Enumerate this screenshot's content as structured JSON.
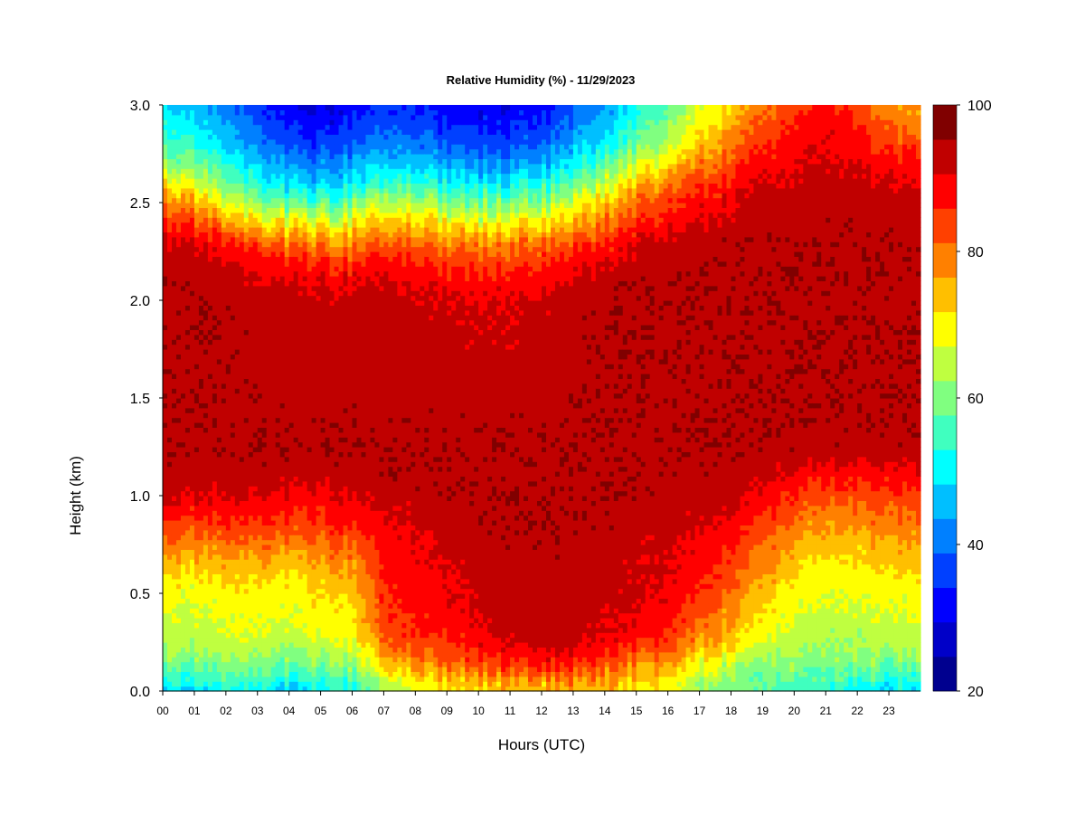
{
  "chart_data": {
    "type": "heatmap",
    "title": "Relative Humidity (%) - 11/29/2023",
    "xlabel": "Hours (UTC)",
    "ylabel": "Height (km)",
    "x_ticks": [
      "00",
      "01",
      "02",
      "03",
      "04",
      "05",
      "06",
      "07",
      "08",
      "09",
      "10",
      "11",
      "12",
      "13",
      "14",
      "15",
      "16",
      "17",
      "18",
      "19",
      "20",
      "21",
      "22",
      "23"
    ],
    "y_ticks": [
      "0.0",
      "0.5",
      "1.0",
      "1.5",
      "2.0",
      "2.5",
      "3.0"
    ],
    "xlim": [
      0,
      24
    ],
    "ylim": [
      0,
      3.0
    ],
    "colorbar": {
      "min": 20,
      "max": 100,
      "step": 5,
      "tick_labels": [
        "20",
        "40",
        "60",
        "80",
        "100"
      ],
      "tick_values": [
        20,
        40,
        60,
        80,
        100
      ],
      "colors": [
        "#00008f",
        "#0000c8",
        "#0000ff",
        "#0040ff",
        "#0080ff",
        "#00bfff",
        "#00ffff",
        "#40ffbf",
        "#80ff80",
        "#bfff40",
        "#ffff00",
        "#ffbf00",
        "#ff8000",
        "#ff4000",
        "#ff0000",
        "#c00000",
        "#800000"
      ]
    },
    "hours": [
      0,
      1,
      2,
      3,
      4,
      5,
      6,
      7,
      8,
      9,
      10,
      11,
      12,
      13,
      14,
      15,
      16,
      17,
      18,
      19,
      20,
      21,
      22,
      23,
      24
    ],
    "heights_km": [
      0.0,
      0.05,
      0.1,
      0.15,
      0.2,
      0.25,
      0.3,
      0.4,
      0.5,
      0.6,
      0.7,
      0.8,
      0.9,
      1.0,
      1.1,
      1.2,
      1.3,
      2.0,
      2.1,
      2.2,
      2.3,
      2.4,
      2.5,
      2.6,
      2.7,
      2.8,
      2.9,
      3.0
    ],
    "rh_percent": [
      [
        50,
        48,
        52,
        50,
        48,
        52,
        52,
        65,
        70,
        72,
        74,
        75,
        76,
        77,
        76,
        74,
        72,
        65,
        62,
        60,
        58,
        55,
        52,
        50,
        50
      ],
      [
        55,
        54,
        57,
        56,
        54,
        57,
        57,
        70,
        74,
        76,
        79,
        80,
        82,
        82,
        80,
        78,
        74,
        67,
        62,
        60,
        60,
        58,
        56,
        55,
        55
      ],
      [
        58,
        57,
        60,
        59,
        57,
        60,
        60,
        74,
        78,
        80,
        84,
        86,
        88,
        88,
        84,
        80,
        76,
        70,
        65,
        62,
        62,
        60,
        60,
        58,
        58
      ],
      [
        62,
        61,
        63,
        62,
        61,
        64,
        64,
        78,
        82,
        84,
        88,
        90,
        92,
        92,
        88,
        84,
        80,
        74,
        68,
        65,
        64,
        62,
        62,
        62,
        62
      ],
      [
        65,
        64,
        66,
        65,
        64,
        67,
        67,
        82,
        86,
        87,
        91,
        93,
        95,
        95,
        91,
        88,
        84,
        78,
        72,
        68,
        66,
        64,
        65,
        65,
        65
      ],
      [
        67,
        66,
        68,
        68,
        66,
        69,
        70,
        85,
        88,
        89,
        93,
        95,
        97,
        97,
        94,
        91,
        87,
        81,
        75,
        70,
        67,
        65,
        66,
        67,
        67
      ],
      [
        68,
        68,
        70,
        70,
        68,
        71,
        72,
        87,
        90,
        91,
        94,
        96,
        97,
        97,
        95,
        93,
        90,
        84,
        78,
        72,
        68,
        66,
        67,
        68,
        68
      ],
      [
        70,
        69,
        71,
        71,
        70,
        73,
        74,
        89,
        91,
        93,
        95,
        97,
        98,
        97,
        96,
        95,
        92,
        87,
        81,
        75,
        70,
        68,
        69,
        70,
        70
      ],
      [
        72,
        71,
        73,
        73,
        72,
        75,
        76,
        90,
        92,
        94,
        96,
        97,
        98,
        98,
        97,
        96,
        94,
        90,
        84,
        78,
        72,
        70,
        71,
        72,
        72
      ],
      [
        75,
        74,
        76,
        76,
        75,
        78,
        79,
        91,
        93,
        95,
        97,
        98,
        98,
        98,
        97,
        96,
        95,
        92,
        87,
        81,
        75,
        72,
        73,
        75,
        75
      ],
      [
        80,
        79,
        80,
        80,
        79,
        82,
        83,
        92,
        94,
        96,
        97,
        98,
        99,
        98,
        97,
        96,
        95,
        93,
        89,
        84,
        78,
        75,
        76,
        78,
        78
      ],
      [
        86,
        85,
        86,
        86,
        85,
        87,
        88,
        93,
        95,
        97,
        98,
        99,
        99,
        99,
        98,
        97,
        96,
        95,
        92,
        87,
        82,
        78,
        79,
        81,
        81
      ],
      [
        92,
        90,
        91,
        91,
        90,
        91,
        92,
        95,
        96,
        98,
        99,
        99,
        99,
        99,
        99,
        98,
        97,
        96,
        94,
        91,
        86,
        82,
        83,
        85,
        85
      ],
      [
        96,
        95,
        95,
        95,
        94,
        94,
        95,
        97,
        98,
        99,
        99,
        99,
        99,
        99,
        99,
        99,
        98,
        98,
        97,
        94,
        90,
        86,
        87,
        89,
        89
      ],
      [
        98,
        98,
        98,
        98,
        97,
        97,
        98,
        99,
        99,
        99,
        99,
        99,
        99,
        99,
        99,
        99,
        99,
        99,
        98,
        97,
        94,
        91,
        92,
        93,
        93
      ],
      [
        99,
        99,
        99,
        99,
        99,
        99,
        99,
        99,
        99,
        99,
        99,
        99,
        99,
        99,
        99,
        99,
        99,
        99,
        99,
        99,
        98,
        96,
        97,
        97,
        97
      ],
      [
        99,
        99,
        99,
        99,
        99,
        99,
        99,
        99,
        99,
        99,
        99,
        99,
        99,
        99,
        99,
        99,
        99,
        99,
        99,
        99,
        99,
        99,
        99,
        99,
        99
      ],
      [
        99,
        99,
        99,
        98,
        97,
        96,
        97,
        97,
        96,
        96,
        95,
        95,
        96,
        98,
        99,
        99,
        99,
        99,
        99,
        99,
        99,
        99,
        99,
        99,
        99
      ],
      [
        99,
        99,
        98,
        96,
        95,
        94,
        94,
        95,
        94,
        93,
        92,
        92,
        93,
        96,
        98,
        99,
        99,
        99,
        99,
        99,
        99,
        99,
        99,
        99,
        99
      ],
      [
        98,
        98,
        96,
        93,
        91,
        89,
        89,
        91,
        90,
        89,
        88,
        88,
        89,
        92,
        95,
        98,
        99,
        99,
        99,
        99,
        99,
        99,
        99,
        99,
        99
      ],
      [
        96,
        95,
        92,
        88,
        84,
        82,
        82,
        85,
        84,
        83,
        82,
        82,
        83,
        86,
        90,
        94,
        97,
        98,
        99,
        99,
        99,
        99,
        99,
        99,
        99
      ],
      [
        90,
        88,
        82,
        78,
        72,
        70,
        72,
        76,
        76,
        74,
        72,
        72,
        74,
        78,
        84,
        89,
        93,
        95,
        97,
        98,
        98,
        99,
        99,
        98,
        98
      ],
      [
        84,
        80,
        72,
        66,
        60,
        58,
        62,
        66,
        66,
        64,
        62,
        62,
        64,
        70,
        77,
        84,
        89,
        92,
        95,
        97,
        97,
        98,
        98,
        97,
        97
      ],
      [
        74,
        70,
        62,
        56,
        50,
        48,
        52,
        56,
        56,
        54,
        52,
        52,
        54,
        60,
        68,
        76,
        84,
        88,
        92,
        95,
        96,
        97,
        97,
        95,
        95
      ],
      [
        64,
        62,
        56,
        50,
        44,
        42,
        46,
        48,
        48,
        46,
        44,
        44,
        46,
        52,
        60,
        68,
        76,
        82,
        88,
        92,
        94,
        96,
        95,
        92,
        92
      ],
      [
        58,
        56,
        50,
        44,
        38,
        36,
        40,
        42,
        42,
        40,
        38,
        38,
        40,
        46,
        52,
        60,
        68,
        76,
        84,
        88,
        92,
        95,
        92,
        88,
        88
      ],
      [
        54,
        52,
        46,
        40,
        34,
        32,
        36,
        38,
        38,
        36,
        34,
        34,
        36,
        42,
        48,
        56,
        64,
        72,
        80,
        86,
        90,
        94,
        90,
        84,
        84
      ],
      [
        50,
        48,
        42,
        36,
        30,
        28,
        32,
        34,
        34,
        32,
        30,
        30,
        32,
        38,
        44,
        52,
        60,
        68,
        76,
        84,
        88,
        92,
        88,
        80,
        80
      ]
    ]
  }
}
